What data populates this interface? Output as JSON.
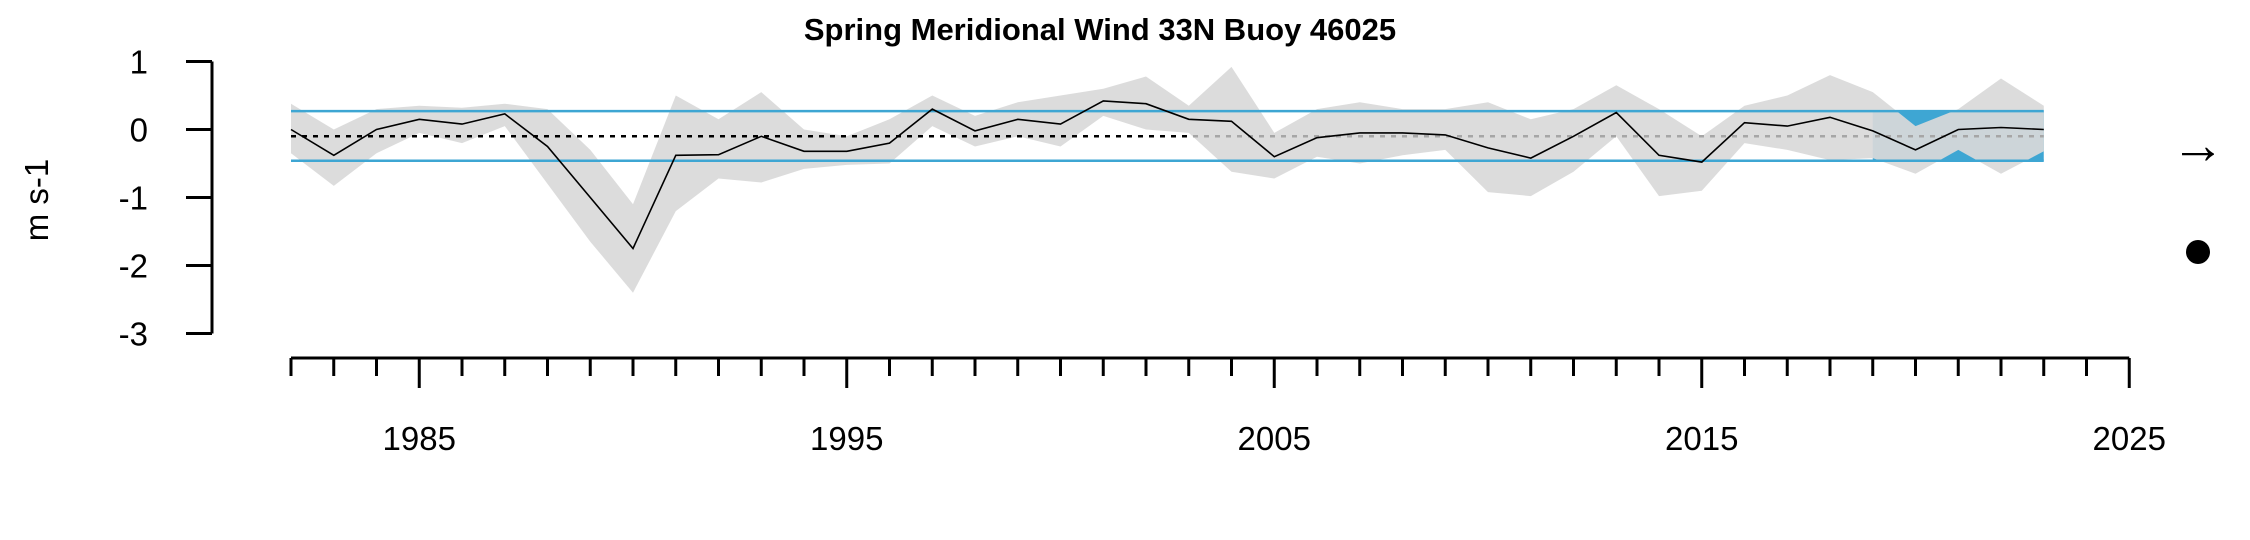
{
  "chart_data": {
    "type": "line",
    "title": "Spring Meridional Wind 33N Buoy 46025",
    "ylabel": "m s-1",
    "xlabel": "",
    "ylim": [
      -3,
      1
    ],
    "xlim": [
      1982,
      2025
    ],
    "yticks": [
      "1",
      "0",
      "-1",
      "-2",
      "-3"
    ],
    "ytick_values": [
      1,
      0,
      -1,
      -2,
      -3
    ],
    "xticks": [
      "1985",
      "1995",
      "2005",
      "2015",
      "2025"
    ],
    "xtick_values": [
      1985,
      1995,
      2005,
      2015,
      2025
    ],
    "years": [
      1982,
      1983,
      1984,
      1985,
      1986,
      1987,
      1988,
      1989,
      1990,
      1991,
      1992,
      1993,
      1994,
      1995,
      1996,
      1997,
      1998,
      1999,
      2000,
      2001,
      2002,
      2003,
      2004,
      2005,
      2006,
      2007,
      2008,
      2009,
      2010,
      2011,
      2012,
      2013,
      2014,
      2015,
      2016,
      2017,
      2018,
      2019,
      2020,
      2021,
      2022,
      2023
    ],
    "series": [
      {
        "values": [
          0.0,
          -0.38,
          0.0,
          0.15,
          0.08,
          0.23,
          -0.25,
          -1.0,
          -1.75,
          -0.38,
          -0.37,
          -0.1,
          -0.32,
          -0.32,
          -0.2,
          0.3,
          -0.02,
          0.15,
          0.08,
          0.42,
          0.38,
          0.15,
          0.12,
          -0.4,
          -0.12,
          -0.05,
          -0.05,
          -0.08,
          -0.27,
          -0.42,
          -0.1,
          0.25,
          -0.38,
          -0.48,
          0.1,
          0.05,
          0.18,
          -0.02,
          -0.3,
          0.0,
          0.03,
          0.0
        ]
      }
    ],
    "uncertainty_upper": [
      0.38,
      0.0,
      0.3,
      0.35,
      0.32,
      0.38,
      0.3,
      -0.3,
      -1.1,
      0.5,
      0.15,
      0.55,
      0.0,
      -0.1,
      0.15,
      0.5,
      0.2,
      0.4,
      0.5,
      0.6,
      0.78,
      0.35,
      0.92,
      -0.05,
      0.3,
      0.4,
      0.3,
      0.3,
      0.4,
      0.15,
      0.3,
      0.65,
      0.3,
      -0.1,
      0.35,
      0.5,
      0.8,
      0.55,
      0.05,
      0.3,
      0.75,
      0.35
    ],
    "uncertainty_lower": [
      -0.35,
      -0.83,
      -0.35,
      -0.05,
      -0.2,
      0.05,
      -0.8,
      -1.65,
      -2.4,
      -1.2,
      -0.72,
      -0.78,
      -0.58,
      -0.52,
      -0.5,
      0.05,
      -0.25,
      -0.1,
      -0.25,
      0.2,
      0.0,
      -0.05,
      -0.62,
      -0.72,
      -0.4,
      -0.5,
      -0.38,
      -0.3,
      -0.92,
      -0.98,
      -0.62,
      -0.1,
      -0.98,
      -0.9,
      -0.2,
      -0.3,
      -0.45,
      -0.42,
      -0.65,
      -0.3,
      -0.65,
      -0.32
    ],
    "mean": -0.1,
    "mean_plus_sd": 0.27,
    "mean_minus_sd": -0.46,
    "recent_period": [
      2019,
      2023
    ],
    "trend_symbol": "→",
    "mean_symbol": "●",
    "colors": {
      "band": "#d9d9d9",
      "sd_lines": "#3ea6d3",
      "recent_shade": "#3ea6d3",
      "line": "#000000",
      "mean_line": "#000000",
      "mean_line_in_band": "#a6a6a6"
    },
    "grid": false,
    "legend": "none"
  }
}
